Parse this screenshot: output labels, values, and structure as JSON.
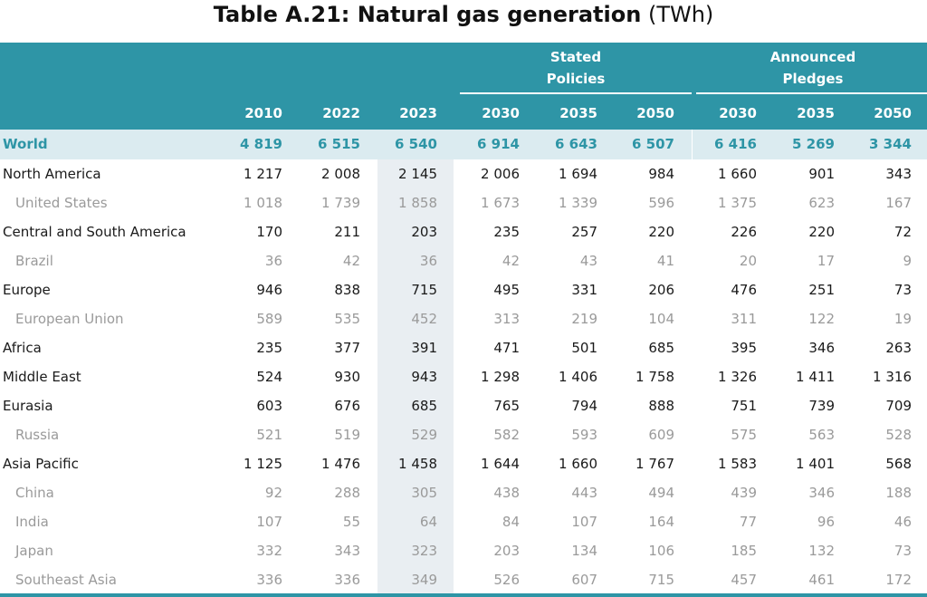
{
  "title": {
    "main": "Table A.21: Natural gas generation",
    "unit": "(TWh)"
  },
  "groups": {
    "stated": [
      "Stated",
      "Policies"
    ],
    "announced": [
      "Announced",
      "Pledges"
    ]
  },
  "years": [
    "2010",
    "2022",
    "2023",
    "2030",
    "2035",
    "2050",
    "2030",
    "2035",
    "2050"
  ],
  "rows": [
    {
      "label": "World",
      "type": "world",
      "values": [
        "4 819",
        "6 515",
        "6 540",
        "6 914",
        "6 643",
        "6 507",
        "6 416",
        "5 269",
        "3 344"
      ]
    },
    {
      "label": "North America",
      "type": "main",
      "values": [
        "1 217",
        "2 008",
        "2 145",
        "2 006",
        "1 694",
        "984",
        "1 660",
        "901",
        "343"
      ]
    },
    {
      "label": "United States",
      "type": "sub",
      "values": [
        "1 018",
        "1 739",
        "1 858",
        "1 673",
        "1 339",
        "596",
        "1 375",
        "623",
        "167"
      ]
    },
    {
      "label": "Central and South America",
      "type": "main",
      "values": [
        "170",
        "211",
        "203",
        "235",
        "257",
        "220",
        "226",
        "220",
        "72"
      ]
    },
    {
      "label": "Brazil",
      "type": "sub",
      "values": [
        "36",
        "42",
        "36",
        "42",
        "43",
        "41",
        "20",
        "17",
        "9"
      ]
    },
    {
      "label": "Europe",
      "type": "main",
      "values": [
        "946",
        "838",
        "715",
        "495",
        "331",
        "206",
        "476",
        "251",
        "73"
      ]
    },
    {
      "label": "European Union",
      "type": "sub",
      "values": [
        "589",
        "535",
        "452",
        "313",
        "219",
        "104",
        "311",
        "122",
        "19"
      ]
    },
    {
      "label": "Africa",
      "type": "main",
      "values": [
        "235",
        "377",
        "391",
        "471",
        "501",
        "685",
        "395",
        "346",
        "263"
      ]
    },
    {
      "label": "Middle East",
      "type": "main",
      "values": [
        "524",
        "930",
        "943",
        "1 298",
        "1 406",
        "1 758",
        "1 326",
        "1 411",
        "1 316"
      ]
    },
    {
      "label": "Eurasia",
      "type": "main",
      "values": [
        "603",
        "676",
        "685",
        "765",
        "794",
        "888",
        "751",
        "739",
        "709"
      ]
    },
    {
      "label": "Russia",
      "type": "sub",
      "values": [
        "521",
        "519",
        "529",
        "582",
        "593",
        "609",
        "575",
        "563",
        "528"
      ]
    },
    {
      "label": "Asia Pacific",
      "type": "main",
      "values": [
        "1 125",
        "1 476",
        "1 458",
        "1 644",
        "1 660",
        "1 767",
        "1 583",
        "1 401",
        "568"
      ]
    },
    {
      "label": "China",
      "type": "sub",
      "values": [
        "92",
        "288",
        "305",
        "438",
        "443",
        "494",
        "439",
        "346",
        "188"
      ]
    },
    {
      "label": "India",
      "type": "sub",
      "values": [
        "107",
        "55",
        "64",
        "84",
        "107",
        "164",
        "77",
        "96",
        "46"
      ]
    },
    {
      "label": "Japan",
      "type": "sub",
      "values": [
        "332",
        "343",
        "323",
        "203",
        "134",
        "106",
        "185",
        "132",
        "73"
      ]
    },
    {
      "label": "Southeast Asia",
      "type": "sub",
      "values": [
        "336",
        "336",
        "349",
        "526",
        "607",
        "715",
        "457",
        "461",
        "172"
      ]
    }
  ]
}
